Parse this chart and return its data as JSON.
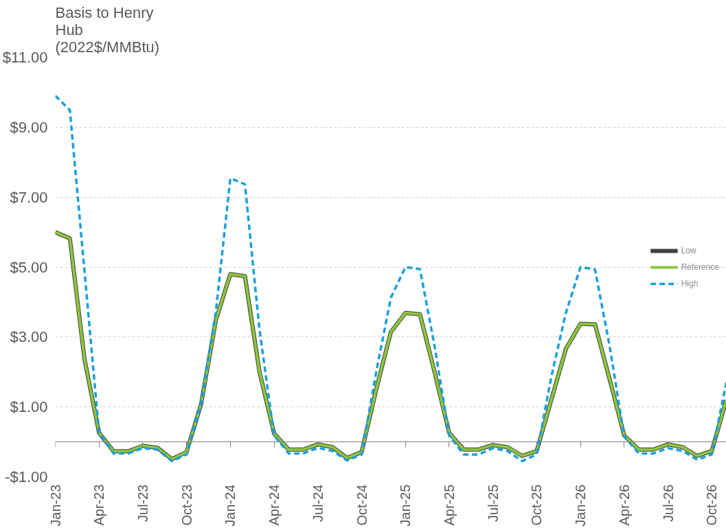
{
  "chart_data": {
    "type": "line",
    "ylabel": "Basis to Henry Hub (2022$/MMBtu)",
    "x": [
      "2023-01",
      "2023-02",
      "2023-03",
      "2023-04",
      "2023-05",
      "2023-06",
      "2023-07",
      "2023-08",
      "2023-09",
      "2023-10",
      "2023-11",
      "2023-12",
      "2024-01",
      "2024-02",
      "2024-03",
      "2024-04",
      "2024-05",
      "2024-06",
      "2024-07",
      "2024-08",
      "2024-09",
      "2024-10",
      "2024-11",
      "2024-12",
      "2025-01",
      "2025-02",
      "2025-03",
      "2025-04",
      "2025-05",
      "2025-06",
      "2025-07",
      "2025-08",
      "2025-09",
      "2025-10",
      "2025-11",
      "2025-12",
      "2026-01",
      "2026-02",
      "2026-03",
      "2026-04",
      "2026-05",
      "2026-06",
      "2026-07",
      "2026-08",
      "2026-09",
      "2026-10",
      "2026-11"
    ],
    "series": [
      {
        "name": "Low",
        "color": "#404040",
        "line_style": "solid",
        "values": [
          6.0,
          5.82,
          2.37,
          0.26,
          -0.27,
          -0.27,
          -0.11,
          -0.17,
          -0.49,
          -0.29,
          1.09,
          3.47,
          4.8,
          4.74,
          2.0,
          0.24,
          -0.22,
          -0.22,
          -0.07,
          -0.15,
          -0.46,
          -0.29,
          1.5,
          3.14,
          3.69,
          3.65,
          2.0,
          0.26,
          -0.22,
          -0.22,
          -0.09,
          -0.15,
          -0.4,
          -0.26,
          1.2,
          2.66,
          3.38,
          3.36,
          1.79,
          0.18,
          -0.22,
          -0.22,
          -0.07,
          -0.15,
          -0.4,
          -0.26,
          1.2
        ]
      },
      {
        "name": "Reference",
        "color": "#8cc63f",
        "line_style": "solid",
        "values": [
          6.0,
          5.82,
          2.37,
          0.26,
          -0.27,
          -0.27,
          -0.11,
          -0.17,
          -0.49,
          -0.29,
          1.09,
          3.47,
          4.8,
          4.74,
          2.0,
          0.24,
          -0.22,
          -0.22,
          -0.07,
          -0.15,
          -0.46,
          -0.29,
          1.5,
          3.14,
          3.69,
          3.65,
          2.0,
          0.26,
          -0.22,
          -0.22,
          -0.09,
          -0.15,
          -0.4,
          -0.26,
          1.2,
          2.66,
          3.38,
          3.36,
          1.79,
          0.18,
          -0.22,
          -0.22,
          -0.07,
          -0.15,
          -0.4,
          -0.26,
          1.2
        ]
      },
      {
        "name": "High",
        "color": "#1a9fdb",
        "line_style": "dashed",
        "values": [
          9.9,
          9.49,
          4.9,
          0.26,
          -0.33,
          -0.33,
          -0.18,
          -0.22,
          -0.55,
          -0.36,
          1.09,
          3.7,
          7.54,
          7.37,
          3.2,
          0.18,
          -0.33,
          -0.33,
          -0.17,
          -0.26,
          -0.53,
          -0.36,
          2.0,
          4.12,
          5.0,
          4.94,
          2.74,
          0.18,
          -0.36,
          -0.36,
          -0.18,
          -0.26,
          -0.55,
          -0.36,
          1.86,
          3.69,
          5.0,
          4.93,
          2.74,
          0.15,
          -0.33,
          -0.33,
          -0.18,
          -0.26,
          -0.51,
          -0.36,
          1.7
        ]
      }
    ],
    "xlim": [
      "2023-01",
      "2026-11"
    ],
    "xticks": [
      {
        "value": "2023-01",
        "label": "Jan-23"
      },
      {
        "value": "2023-04",
        "label": "Apr-23"
      },
      {
        "value": "2023-07",
        "label": "Jul-23"
      },
      {
        "value": "2023-10",
        "label": "Oct-23"
      },
      {
        "value": "2024-01",
        "label": "Jan-24"
      },
      {
        "value": "2024-04",
        "label": "Apr-24"
      },
      {
        "value": "2024-07",
        "label": "Jul-24"
      },
      {
        "value": "2024-10",
        "label": "Oct-24"
      },
      {
        "value": "2025-01",
        "label": "Jan-25"
      },
      {
        "value": "2025-04",
        "label": "Apr-25"
      },
      {
        "value": "2025-07",
        "label": "Jul-25"
      },
      {
        "value": "2025-10",
        "label": "Oct-25"
      },
      {
        "value": "2026-01",
        "label": "Jan-26"
      },
      {
        "value": "2026-04",
        "label": "Apr-26"
      },
      {
        "value": "2026-07",
        "label": "Jul-26"
      },
      {
        "value": "2026-10",
        "label": "Oct-26"
      }
    ],
    "ylim": [
      -1,
      11
    ],
    "yticks": [
      {
        "value": -1,
        "label": "-$1.00"
      },
      {
        "value": 1,
        "label": "$1.00"
      },
      {
        "value": 3,
        "label": "$3.00"
      },
      {
        "value": 5,
        "label": "$5.00"
      },
      {
        "value": 7,
        "label": "$7.00"
      },
      {
        "value": 9,
        "label": "$9.00"
      },
      {
        "value": 11,
        "label": "$11.00"
      }
    ],
    "grid": "y",
    "legend": "right",
    "marker": "none"
  }
}
